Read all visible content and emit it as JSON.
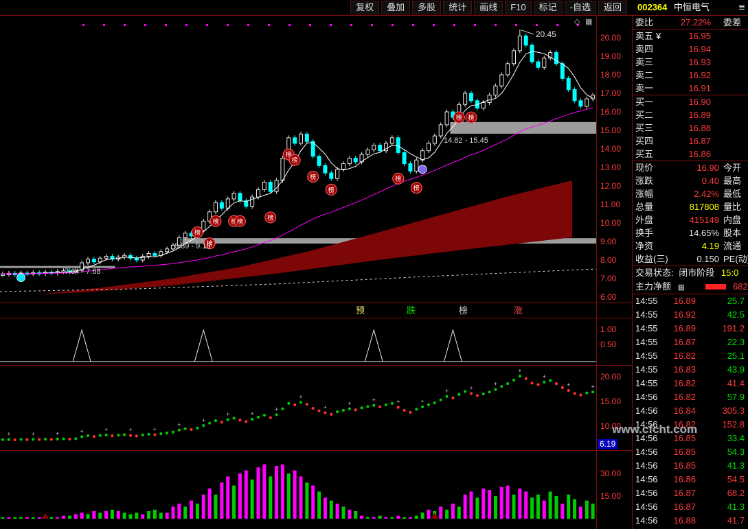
{
  "title_bar": {
    "menu": [
      "复权",
      "叠加",
      "多股",
      "统计",
      "画线",
      "F10",
      "标记",
      "-自选",
      "返回"
    ],
    "stock_code": "002364",
    "stock_name": "中恒电气"
  },
  "chart": {
    "legend": [
      {
        "label": "预",
        "color": "#e8e86a"
      },
      {
        "label": "跌",
        "color": "#00dd00"
      },
      {
        "label": "榜",
        "color": "#c8c8c8"
      },
      {
        "label": "涨",
        "color": "#ff4a4a"
      }
    ],
    "annotations": {
      "peak_label": "20.45",
      "gap_high": "14.82 - 15.45",
      "gap_mid": "8.89 - 9.18",
      "gap_low": "7.64 - 7.68"
    },
    "axis": {
      "main": [
        "20.00",
        "19.00",
        "18.00",
        "17.00",
        "16.00",
        "15.00",
        "14.00",
        "13.00",
        "12.00",
        "11.00",
        "10.00",
        "9.00",
        "8.00",
        "7.00",
        "6.00"
      ],
      "alert": [
        "1.00",
        "0.50"
      ],
      "indicator": [
        "20.00",
        "15.00",
        "10.00"
      ],
      "indicator_tag": "6.19",
      "volume": [
        "30.00",
        "15.00"
      ]
    }
  },
  "chart_data": {
    "type": "candlestick",
    "y_range": [
      6.0,
      20.45
    ],
    "closes": [
      7.25,
      7.28,
      7.22,
      7.3,
      7.26,
      7.32,
      7.28,
      7.35,
      7.3,
      7.38,
      7.42,
      7.36,
      7.45,
      7.85,
      8.05,
      7.9,
      8.1,
      8.2,
      8.05,
      8.15,
      8.25,
      8.1,
      8.0,
      8.2,
      8.35,
      8.25,
      8.45,
      8.6,
      8.8,
      9.2,
      9.45,
      9.3,
      9.6,
      10.1,
      10.6,
      11.1,
      10.8,
      11.3,
      11.6,
      11.2,
      10.9,
      11.4,
      11.8,
      12.2,
      11.7,
      12.3,
      13.5,
      14.6,
      14.3,
      14.8,
      14.4,
      13.6,
      13.1,
      12.7,
      12.4,
      12.9,
      13.2,
      13.5,
      13.3,
      13.7,
      13.95,
      14.2,
      13.9,
      14.3,
      14.6,
      13.8,
      13.2,
      12.8,
      13.4,
      13.9,
      14.3,
      14.7,
      15.3,
      16.0,
      15.7,
      16.4,
      17.0,
      16.6,
      16.2,
      16.5,
      16.9,
      17.4,
      18.0,
      18.6,
      19.3,
      20.1,
      19.6,
      18.7,
      18.4,
      18.9,
      19.2,
      18.6,
      17.8,
      17.2,
      16.6,
      16.3,
      16.7,
      16.9
    ],
    "peak_index": 85,
    "peak_high": 20.45,
    "ma_short_color": "#ffffff",
    "ma_long_color": "#ff00ff",
    "alert_spikes": [
      13,
      33,
      61,
      74
    ],
    "volume_bars": [
      -1,
      1,
      -1,
      -1,
      1,
      -1,
      1,
      -1,
      -1,
      1,
      2,
      -2,
      3,
      4,
      -3,
      5,
      -4,
      5,
      -6,
      5,
      -4,
      -3,
      -4,
      3,
      -5,
      -6,
      -4,
      4,
      8,
      10,
      -8,
      12,
      -10,
      16,
      20,
      -16,
      24,
      28,
      -22,
      30,
      32,
      -26,
      34,
      36,
      -28,
      35,
      36,
      -30,
      32,
      28,
      -24,
      22,
      -18,
      14,
      -12,
      10,
      -8,
      6,
      -5,
      2,
      -1,
      1,
      -2,
      1,
      -1,
      2,
      -1,
      1,
      -2,
      -4,
      6,
      -5,
      8,
      -6,
      10,
      -8,
      16,
      18,
      -14,
      20,
      19,
      -15,
      21,
      22,
      -16,
      20,
      18,
      -14,
      -16,
      12,
      -18,
      -15,
      10,
      -16,
      -13,
      8,
      -12,
      -10
    ],
    "volume_markers": [
      {
        "i": 7,
        "color": "#8b0000"
      },
      {
        "i": 71,
        "color": "#8b0000"
      }
    ],
    "bang_markers": [
      {
        "i": 32,
        "p": 9.5
      },
      {
        "i": 34,
        "p": 8.9
      },
      {
        "i": 35,
        "p": 10.1
      },
      {
        "i": 38,
        "p": 10.1
      },
      {
        "i": 39,
        "p": 10.1
      },
      {
        "i": 44,
        "p": 10.3
      },
      {
        "i": 47,
        "p": 13.7
      },
      {
        "i": 48,
        "p": 13.4
      },
      {
        "i": 51,
        "p": 12.5
      },
      {
        "i": 54,
        "p": 11.8
      },
      {
        "i": 65,
        "p": 12.4
      },
      {
        "i": 68,
        "p": 11.9
      },
      {
        "i": 75,
        "p": 15.7
      },
      {
        "i": 77,
        "p": 15.7
      }
    ],
    "special_markers": [
      {
        "i": 3,
        "p": 7.05,
        "color": "#00e5ff"
      },
      {
        "i": 69,
        "p": 12.9,
        "color": "#7b68ee"
      }
    ],
    "gap_zones": [
      {
        "low": 14.82,
        "high": 15.45,
        "from_i": 74,
        "to_i": 98
      },
      {
        "low": 8.89,
        "high": 9.18,
        "from_i": 30,
        "to_i": 98
      },
      {
        "low": 7.64,
        "high": 7.68,
        "from_i": 0,
        "to_i": 18
      }
    ]
  },
  "quote": {
    "weibi_label": "委比",
    "weibi_value": "27.22%",
    "weicha_label": "委差",
    "asks": [
      [
        "卖五",
        "16.95"
      ],
      [
        "卖四",
        "16.94"
      ],
      [
        "卖三",
        "16.93"
      ],
      [
        "卖二",
        "16.92"
      ],
      [
        "卖一",
        "16.91"
      ]
    ],
    "bids": [
      [
        "买一",
        "16.90"
      ],
      [
        "买二",
        "16.89"
      ],
      [
        "买三",
        "16.88"
      ],
      [
        "买四",
        "16.87"
      ],
      [
        "买五",
        "16.86"
      ]
    ],
    "stats": [
      {
        "label": "现价",
        "value": "16.90",
        "label2": "今开",
        "color": "red"
      },
      {
        "label": "涨跌",
        "value": "0.40",
        "label2": "最高",
        "color": "red"
      },
      {
        "label": "涨幅",
        "value": "2.42%",
        "label2": "最低",
        "color": "red"
      },
      {
        "label": "总量",
        "value": "817808",
        "label2": "量比",
        "color": "yellow"
      },
      {
        "label": "外盘",
        "value": "415149",
        "label2": "内盘",
        "color": "red"
      },
      {
        "label": "换手",
        "value": "14.65%",
        "label2": "股本",
        "color": "white"
      },
      {
        "label": "净资",
        "value": "4.19",
        "label2": "流通",
        "color": "yellow"
      },
      {
        "label": "收益(三)",
        "value": "0.150",
        "label2": "PE(动)",
        "color": "white"
      }
    ],
    "status_label": "交易状态:",
    "status_value": "闭市阶段",
    "status_time": "15:0",
    "main_net_label": "主力净额",
    "main_net_value": "682"
  },
  "ticks": [
    {
      "t": "14:55",
      "p": "16.89",
      "v": "25.7",
      "c": "g"
    },
    {
      "t": "14:55",
      "p": "16.92",
      "v": "42.5",
      "c": "g"
    },
    {
      "t": "14:55",
      "p": "16.89",
      "v": "191.2",
      "c": "r"
    },
    {
      "t": "14:55",
      "p": "16.87",
      "v": "22.3",
      "c": "g"
    },
    {
      "t": "14:55",
      "p": "16.82",
      "v": "25.1",
      "c": "g"
    },
    {
      "t": "14:55",
      "p": "16.83",
      "v": "43.9",
      "c": "g"
    },
    {
      "t": "14:55",
      "p": "16.82",
      "v": "41.4",
      "c": "r"
    },
    {
      "t": "14:56",
      "p": "16.82",
      "v": "57.9",
      "c": "g"
    },
    {
      "t": "14:56",
      "p": "16.84",
      "v": "305.3",
      "c": "r"
    },
    {
      "t": "14:56",
      "p": "16.82",
      "v": "152.8",
      "c": "r"
    },
    {
      "t": "14:56",
      "p": "16.85",
      "v": "33.4",
      "c": "g"
    },
    {
      "t": "14:56",
      "p": "16.85",
      "v": "54.3",
      "c": "g"
    },
    {
      "t": "14:56",
      "p": "16.85",
      "v": "41.3",
      "c": "g"
    },
    {
      "t": "14:56",
      "p": "16.86",
      "v": "54.5",
      "c": "r"
    },
    {
      "t": "14:56",
      "p": "16.87",
      "v": "68.2",
      "c": "r"
    },
    {
      "t": "14:56",
      "p": "16.87",
      "v": "41.3",
      "c": "g"
    },
    {
      "t": "14:56",
      "p": "16.88",
      "v": "41.7",
      "c": "r"
    }
  ],
  "watermark": "www.cfcht.com"
}
